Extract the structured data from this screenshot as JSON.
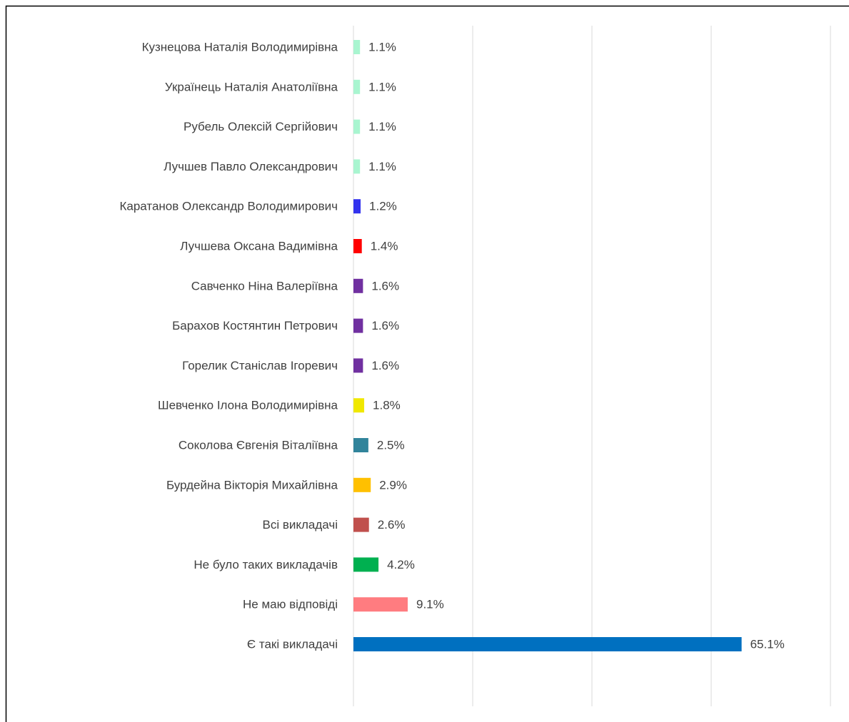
{
  "chart_data": {
    "type": "bar",
    "orientation": "horizontal",
    "categories": [
      "Кузнецова Наталія Володимирівна",
      "Українець Наталія Анатоліївна",
      "Рубель Олексій Сергійович",
      "Лучшев Павло Олександрович",
      "Каратанов Олександр Володимирович",
      "Лучшева Оксана Вадимівна",
      "Савченко Ніна Валеріївна",
      "Барахов Костянтин Петрович",
      "Горелик Станіслав Ігоревич",
      "Шевченко Ілона Володимирівна",
      "Соколова Євгенія Віталіївна",
      "Бурдейна Вікторія Михайлівна",
      "Всі викладачі ",
      "Не було таких викладачів",
      "Не маю відповіді",
      "Є такі викладачі"
    ],
    "values": [
      1.1,
      1.1,
      1.1,
      1.1,
      1.2,
      1.4,
      1.6,
      1.6,
      1.6,
      1.8,
      2.5,
      2.9,
      2.6,
      4.2,
      9.1,
      65.1
    ],
    "value_labels": [
      "1.1%",
      "1.1%",
      "1.1%",
      "1.1%",
      "1.2%",
      "1.4%",
      "1.6%",
      "1.6%",
      "1.6%",
      "1.8%",
      "2.5%",
      "2.9%",
      "2.6%",
      "4.2%",
      "9.1%",
      "65.1%"
    ],
    "colors": [
      "#a9f5d0",
      "#a9f5d0",
      "#a9f5d0",
      "#a9f5d0",
      "#3333ee",
      "#ff0000",
      "#7030a0",
      "#7030a0",
      "#7030a0",
      "#f0e800",
      "#31849b",
      "#ffc000",
      "#c0504d",
      "#00b050",
      "#ff7c80",
      "#0070c0"
    ],
    "xlim": [
      0,
      80
    ],
    "xticks": [
      0,
      20,
      40,
      60,
      80
    ],
    "grid": true
  }
}
